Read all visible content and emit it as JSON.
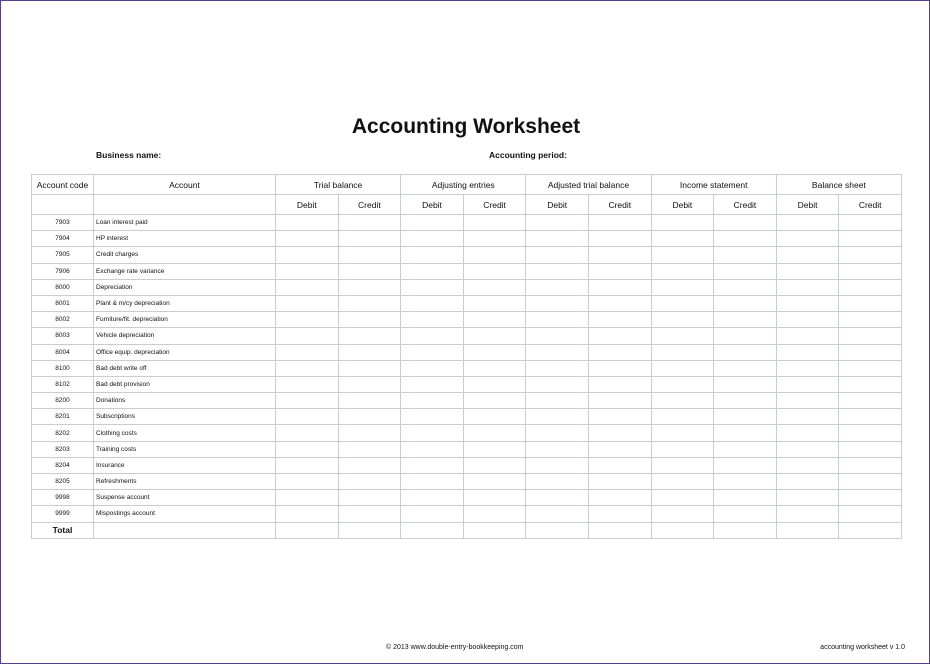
{
  "title": "Accounting Worksheet",
  "business_name_label": "Business name:",
  "accounting_period_label": "Accounting period:",
  "headers": {
    "code": "Account code",
    "account": "Account",
    "groups": [
      "Trial balance",
      "Adjusting entries",
      "Adjusted trial balance",
      "Income statement",
      "Balance sheet"
    ],
    "debit": "Debit",
    "credit": "Credit"
  },
  "rows": [
    {
      "code": "7903",
      "name": "Loan interest paid"
    },
    {
      "code": "7904",
      "name": "HP interest"
    },
    {
      "code": "7905",
      "name": "Credit charges"
    },
    {
      "code": "7906",
      "name": "Exchange rate variance"
    },
    {
      "code": "8000",
      "name": "Depreciation"
    },
    {
      "code": "8001",
      "name": "Plant & m/cy depreciation"
    },
    {
      "code": "8002",
      "name": "Furniture/fit. depreciation"
    },
    {
      "code": "8003",
      "name": "Vehicle depreciation"
    },
    {
      "code": "8004",
      "name": "Office equip. depreciation"
    },
    {
      "code": "8100",
      "name": "Bad debt write off"
    },
    {
      "code": "8102",
      "name": "Bad debt provision"
    },
    {
      "code": "8200",
      "name": "Donations"
    },
    {
      "code": "8201",
      "name": "Subscriptions"
    },
    {
      "code": "8202",
      "name": "Clothing costs"
    },
    {
      "code": "8203",
      "name": "Training costs"
    },
    {
      "code": "8204",
      "name": "Insurance"
    },
    {
      "code": "8205",
      "name": "Refreshments"
    },
    {
      "code": "9998",
      "name": "Suspense account"
    },
    {
      "code": "9999",
      "name": "Mispostings account"
    }
  ],
  "total_label": "Total",
  "footer": {
    "copyright": "© 2013 www.double-entry-bookkeeping.com",
    "version": "accounting worksheet v 1.0"
  }
}
